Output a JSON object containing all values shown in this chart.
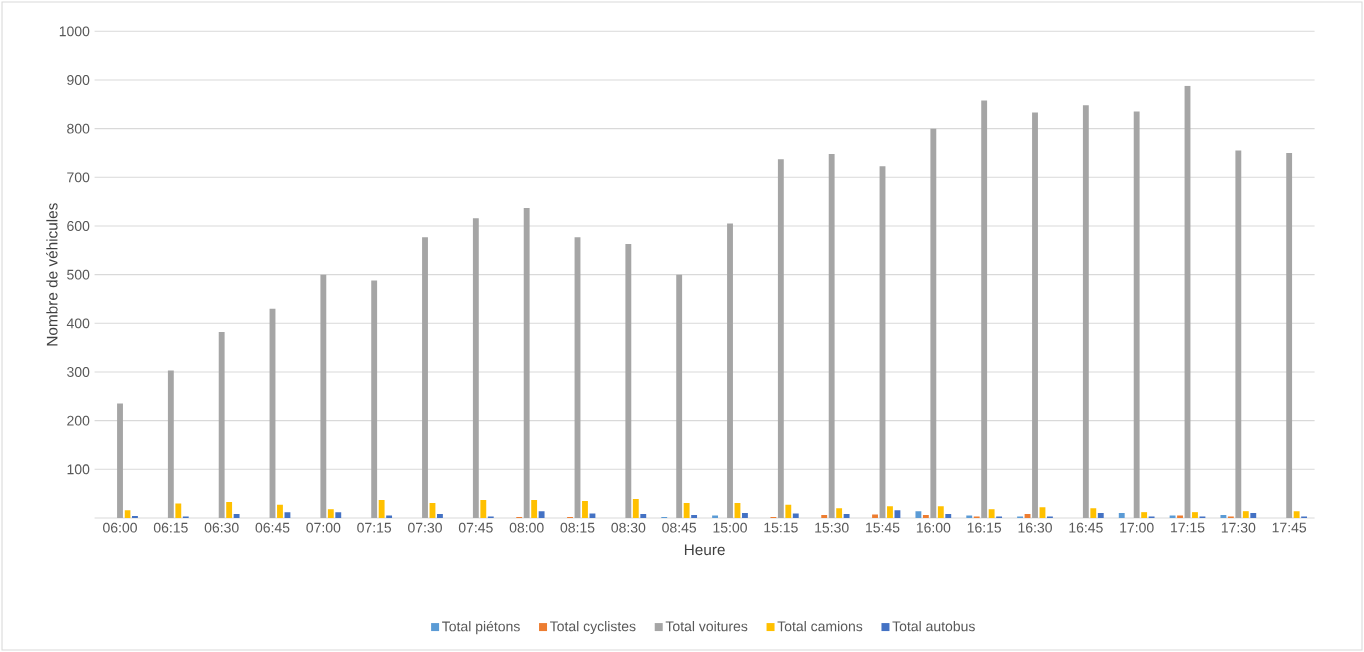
{
  "chart_data": {
    "type": "bar",
    "xlabel": "Heure",
    "ylabel": "Nombre de véhicules",
    "categories": [
      "06:00",
      "06:15",
      "06:30",
      "06:45",
      "07:00",
      "07:15",
      "07:30",
      "07:45",
      "08:00",
      "08:15",
      "08:30",
      "08:45",
      "15:00",
      "15:15",
      "15:30",
      "15:45",
      "16:00",
      "16:15",
      "16:30",
      "16:45",
      "17:00",
      "17:15",
      "17:30",
      "17:45"
    ],
    "series": [
      {
        "name": "Total piétons",
        "color": "#5b9bd5",
        "values": [
          0,
          0,
          0,
          0,
          0,
          0,
          0,
          0,
          0,
          0,
          0,
          2,
          5,
          0,
          0,
          0,
          14,
          5,
          3,
          0,
          10,
          5,
          6,
          0
        ]
      },
      {
        "name": "Total cyclistes",
        "color": "#ed7d31",
        "values": [
          0,
          0,
          0,
          0,
          0,
          0,
          0,
          0,
          2,
          2,
          0,
          0,
          0,
          2,
          6,
          7,
          6,
          3,
          8,
          0,
          0,
          5,
          3,
          0
        ]
      },
      {
        "name": "Total voitures",
        "color": "#a5a5a5",
        "values": [
          235,
          303,
          382,
          430,
          500,
          488,
          577,
          616,
          637,
          577,
          563,
          500,
          605,
          737,
          748,
          723,
          800,
          858,
          833,
          848,
          835,
          888,
          755,
          750
        ]
      },
      {
        "name": "Total camions",
        "color": "#ffc000",
        "values": [
          16,
          30,
          33,
          27,
          18,
          37,
          31,
          37,
          37,
          35,
          39,
          31,
          31,
          27,
          20,
          24,
          24,
          18,
          22,
          20,
          12,
          12,
          14,
          14
        ]
      },
      {
        "name": "Total autobus",
        "color": "#4472c4",
        "values": [
          4,
          3,
          8,
          12,
          12,
          5,
          8,
          3,
          14,
          9,
          8,
          6,
          10,
          9,
          8,
          16,
          8,
          3,
          3,
          10,
          3,
          3,
          10,
          3
        ]
      }
    ],
    "ylim": [
      0,
      1000
    ],
    "yticks": [
      {
        "value": 0,
        "label": null
      },
      100,
      200,
      300,
      400,
      500,
      600,
      700,
      800,
      900,
      1000
    ],
    "grid": "y",
    "legend": "bottom"
  }
}
